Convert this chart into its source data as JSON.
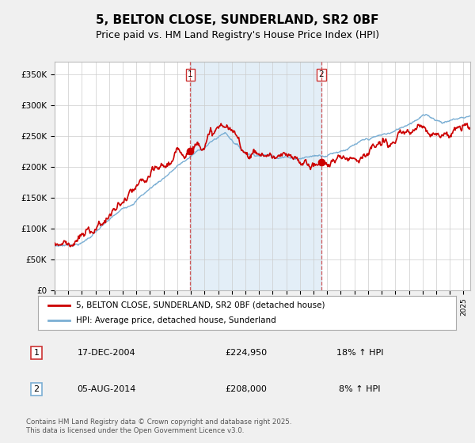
{
  "title": "5, BELTON CLOSE, SUNDERLAND, SR2 0BF",
  "subtitle": "Price paid vs. HM Land Registry's House Price Index (HPI)",
  "ylim": [
    0,
    370000
  ],
  "xlim_start": 1995.0,
  "xlim_end": 2025.5,
  "sale1_date": 2004.96,
  "sale1_price": 224950,
  "sale1_hpi_pct": "18%",
  "sale1_display_date": "17-DEC-2004",
  "sale2_date": 2014.58,
  "sale2_price": 208000,
  "sale2_hpi_pct": "8%",
  "sale2_display_date": "05-AUG-2014",
  "line1_color": "#cc0000",
  "line2_color": "#7bafd4",
  "vline_color": "#cc3333",
  "shade_color": "#d8e8f5",
  "background_color": "#f0f0f0",
  "plot_bg": "#ffffff",
  "legend_line1": "5, BELTON CLOSE, SUNDERLAND, SR2 0BF (detached house)",
  "legend_line2": "HPI: Average price, detached house, Sunderland",
  "footer": "Contains HM Land Registry data © Crown copyright and database right 2025.\nThis data is licensed under the Open Government Licence v3.0.",
  "title_fontsize": 11,
  "subtitle_fontsize": 9
}
